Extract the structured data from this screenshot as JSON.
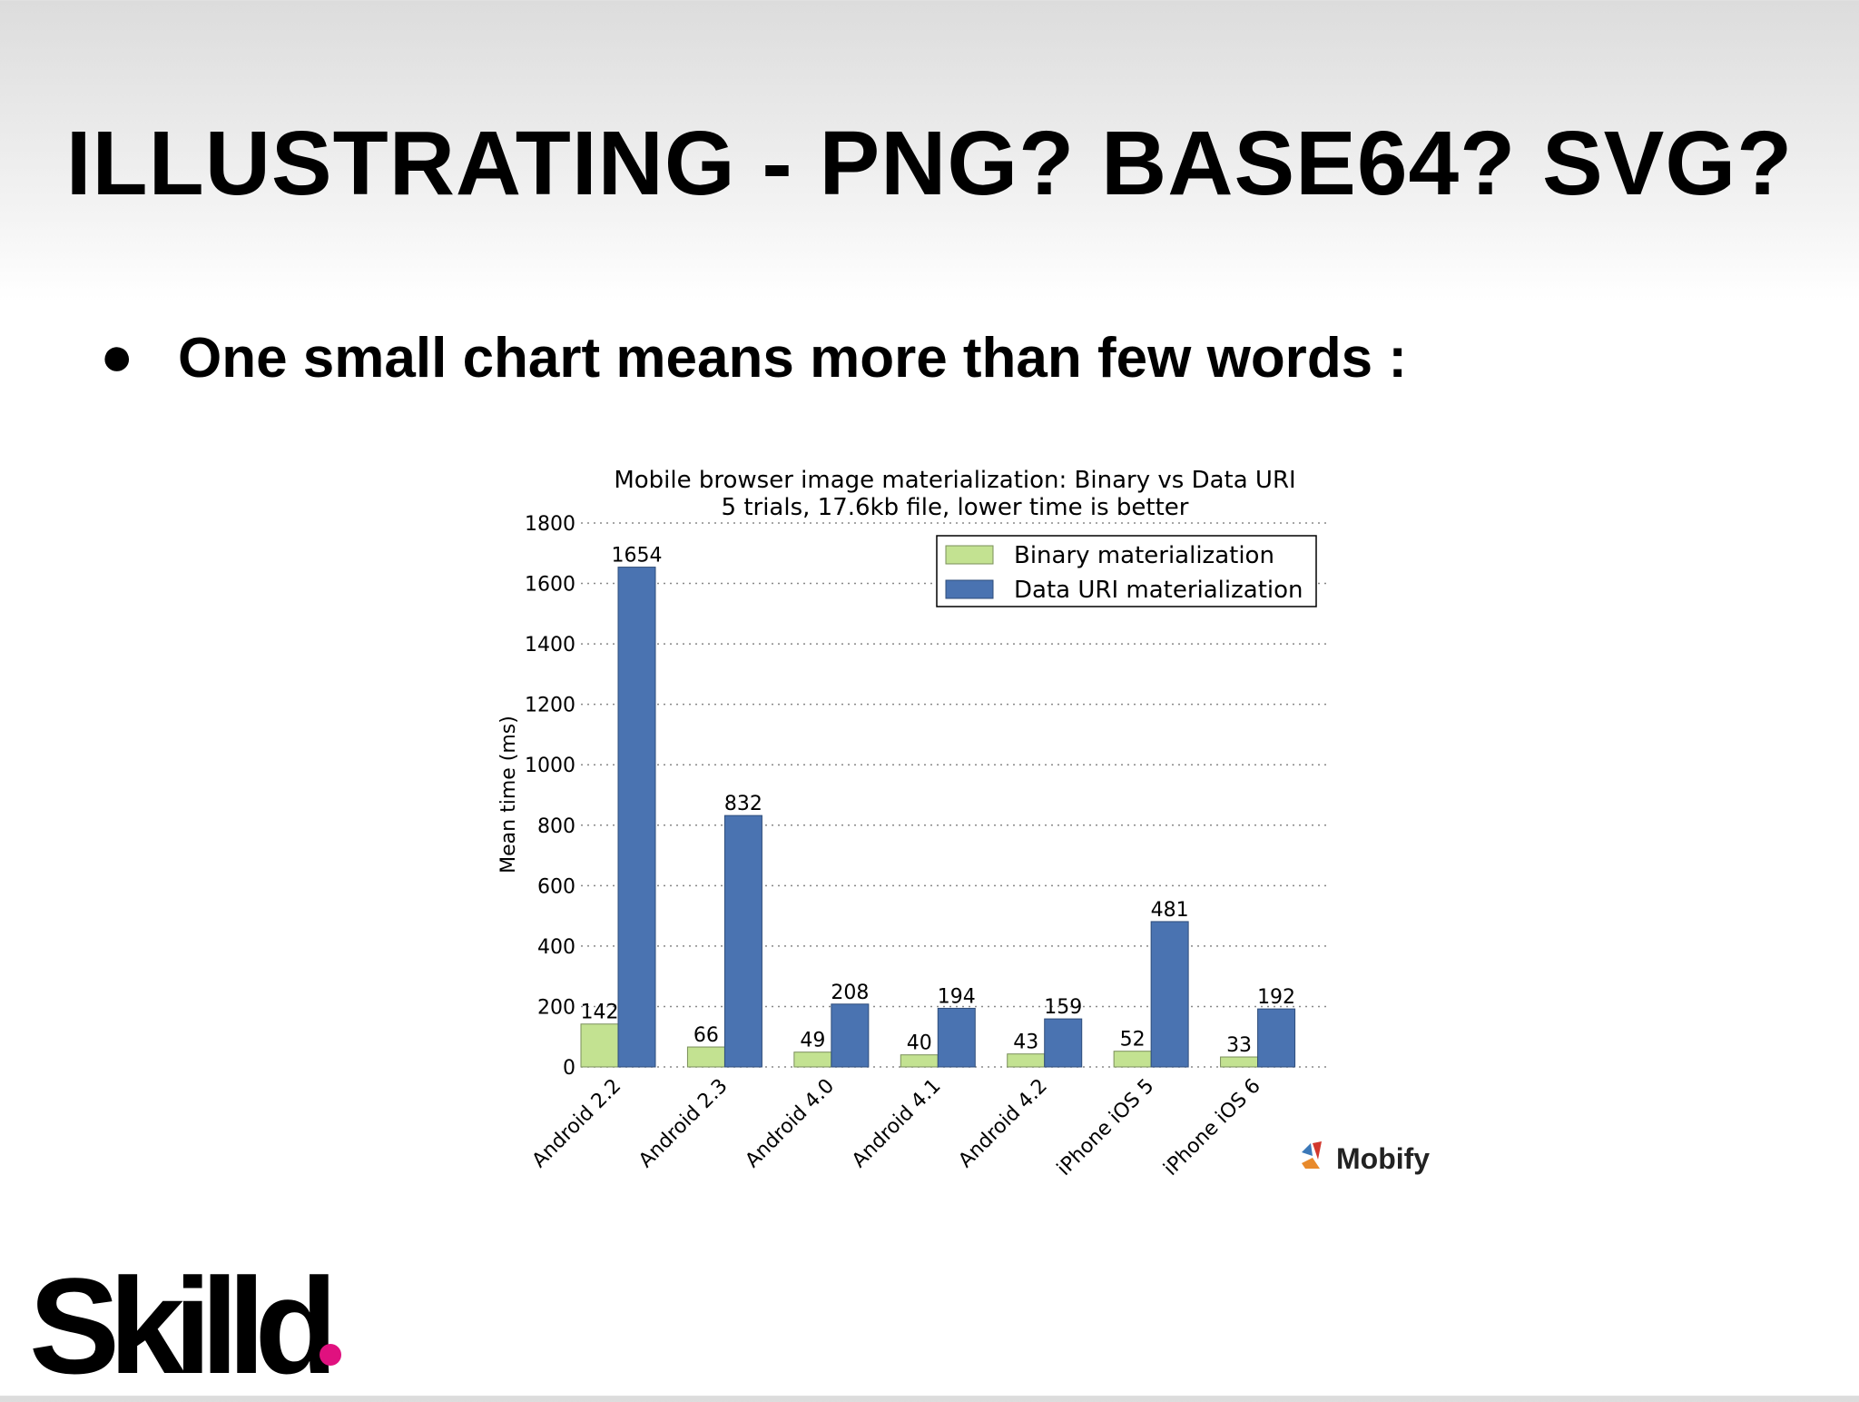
{
  "slide": {
    "title": "ILLUSTRATING - PNG? BASE64? SVG?",
    "bullet_symbol": "●",
    "bullet_text": "One small chart means more than few words :",
    "source_logo": "Mobify",
    "brand_logo": "Skilld"
  },
  "colors": {
    "binary": "#c3e291",
    "data_uri": "#4a73b1",
    "brand_accent": "#e0117f"
  },
  "chart_data": {
    "type": "bar",
    "title": "Mobile browser image materialization: Binary vs Data URI",
    "subtitle": "5 trials, 17.6kb file, lower time is better",
    "xlabel": "",
    "ylabel": "Mean time (ms)",
    "ylim": [
      0,
      1800
    ],
    "yticks": [
      0,
      200,
      400,
      600,
      800,
      1000,
      1200,
      1400,
      1600,
      1800
    ],
    "grid": "horizontal dotted",
    "legend_position": "top-right",
    "categories": [
      "Android 2.2",
      "Android 2.3",
      "Android 4.0",
      "Android 4.1",
      "Android 4.2",
      "iPhone iOS 5",
      "iPhone iOS 6"
    ],
    "series": [
      {
        "name": "Binary materialization",
        "values": [
          142,
          66,
          49,
          40,
          43,
          52,
          33
        ]
      },
      {
        "name": "Data URI materialization",
        "values": [
          1654,
          832,
          208,
          194,
          159,
          481,
          192
        ]
      }
    ]
  }
}
